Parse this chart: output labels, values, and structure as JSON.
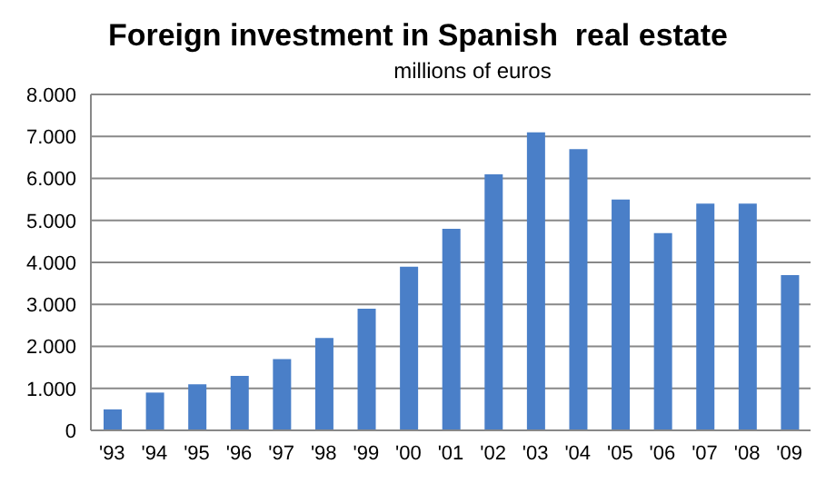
{
  "chart_data": {
    "type": "bar",
    "title": "Foreign investment in Spanish  real estate",
    "subtitle": "millions of euros",
    "categories": [
      "'93",
      "'94",
      "'95",
      "'96",
      "'97",
      "'98",
      "'99",
      "'00",
      "'01",
      "'02",
      "'03",
      "'04",
      "'05",
      "'06",
      "'07",
      "'08",
      "'09"
    ],
    "values": [
      500,
      900,
      1100,
      1300,
      1700,
      2200,
      2900,
      3900,
      4800,
      6100,
      7100,
      6700,
      5500,
      4700,
      5400,
      5400,
      3700
    ],
    "color": "#4a7fc8",
    "ylim": [
      0,
      8000
    ],
    "yticks": [
      {
        "value": 0,
        "label": "0"
      },
      {
        "value": 1000,
        "label": "1.000"
      },
      {
        "value": 2000,
        "label": "2.000"
      },
      {
        "value": 3000,
        "label": "3.000"
      },
      {
        "value": 4000,
        "label": "4.000"
      },
      {
        "value": 5000,
        "label": "5.000"
      },
      {
        "value": 6000,
        "label": "6.000"
      },
      {
        "value": 7000,
        "label": "7.000"
      },
      {
        "value": 8000,
        "label": "8.000"
      }
    ],
    "grid": "y"
  }
}
